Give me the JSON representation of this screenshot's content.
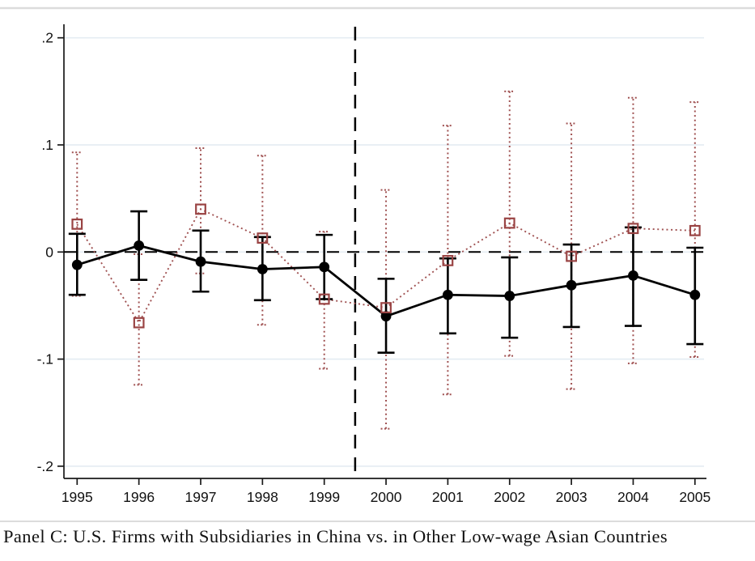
{
  "figure": {
    "caption": "Panel C: U.S. Firms with Subsidiaries in China vs. in Other Low-wage Asian Countries"
  },
  "colors": {
    "black_series": "#000000",
    "red_series": "#a05252",
    "red_marker": "#9a4444",
    "gridline": "#e6edf3",
    "axis": "#1a1a1a",
    "figure_border": "#dcdcdc",
    "background": "#ffffff"
  },
  "chart_data": {
    "type": "line",
    "title": "",
    "xlabel": "",
    "ylabel": "",
    "x": [
      1995,
      1996,
      1997,
      1998,
      1999,
      2000,
      2001,
      2002,
      2003,
      2004,
      2005
    ],
    "xtick_labels": [
      "1995",
      "1996",
      "1997",
      "1998",
      "1999",
      "2000",
      "2001",
      "2002",
      "2003",
      "2004",
      "2005"
    ],
    "ylim": [
      -0.2,
      0.2
    ],
    "yticks": [
      0.2,
      0.1,
      0,
      -0.1,
      -0.2
    ],
    "ytick_labels": [
      ".2",
      ".1",
      "0",
      "-.1",
      "-.2"
    ],
    "grid": true,
    "legend": "none",
    "reference_lines": {
      "horizontal_y": 0,
      "vertical_x": 1999.5,
      "style": "dashed-black"
    },
    "series": [
      {
        "name": "U.S. firms with subsidiaries in China",
        "marker": "filled-circle",
        "line_style": "solid",
        "color": "#000000",
        "values": [
          -0.012,
          0.006,
          -0.009,
          -0.016,
          -0.014,
          -0.06,
          -0.04,
          -0.041,
          -0.031,
          -0.022,
          -0.04
        ],
        "ci_high": [
          0.017,
          0.038,
          0.02,
          0.014,
          0.016,
          -0.025,
          -0.006,
          -0.005,
          0.007,
          0.023,
          0.004
        ],
        "ci_low": [
          -0.04,
          -0.026,
          -0.037,
          -0.045,
          -0.044,
          -0.094,
          -0.076,
          -0.08,
          -0.07,
          -0.069,
          -0.086
        ]
      },
      {
        "name": "U.S. firms with subsidiaries in other low-wage Asian countries",
        "marker": "hollow-square",
        "line_style": "dotted",
        "color": "#a05252",
        "values": [
          0.026,
          -0.066,
          0.04,
          0.013,
          -0.044,
          -0.052,
          -0.008,
          0.027,
          -0.004,
          0.022,
          0.02
        ],
        "ci_high": [
          0.093,
          -0.002,
          0.097,
          0.09,
          0.019,
          0.058,
          0.118,
          0.15,
          0.12,
          0.144,
          0.14
        ],
        "ci_low": [
          -0.041,
          -0.124,
          -0.02,
          -0.068,
          -0.109,
          -0.165,
          -0.133,
          -0.097,
          -0.128,
          -0.104,
          -0.098
        ]
      }
    ]
  }
}
